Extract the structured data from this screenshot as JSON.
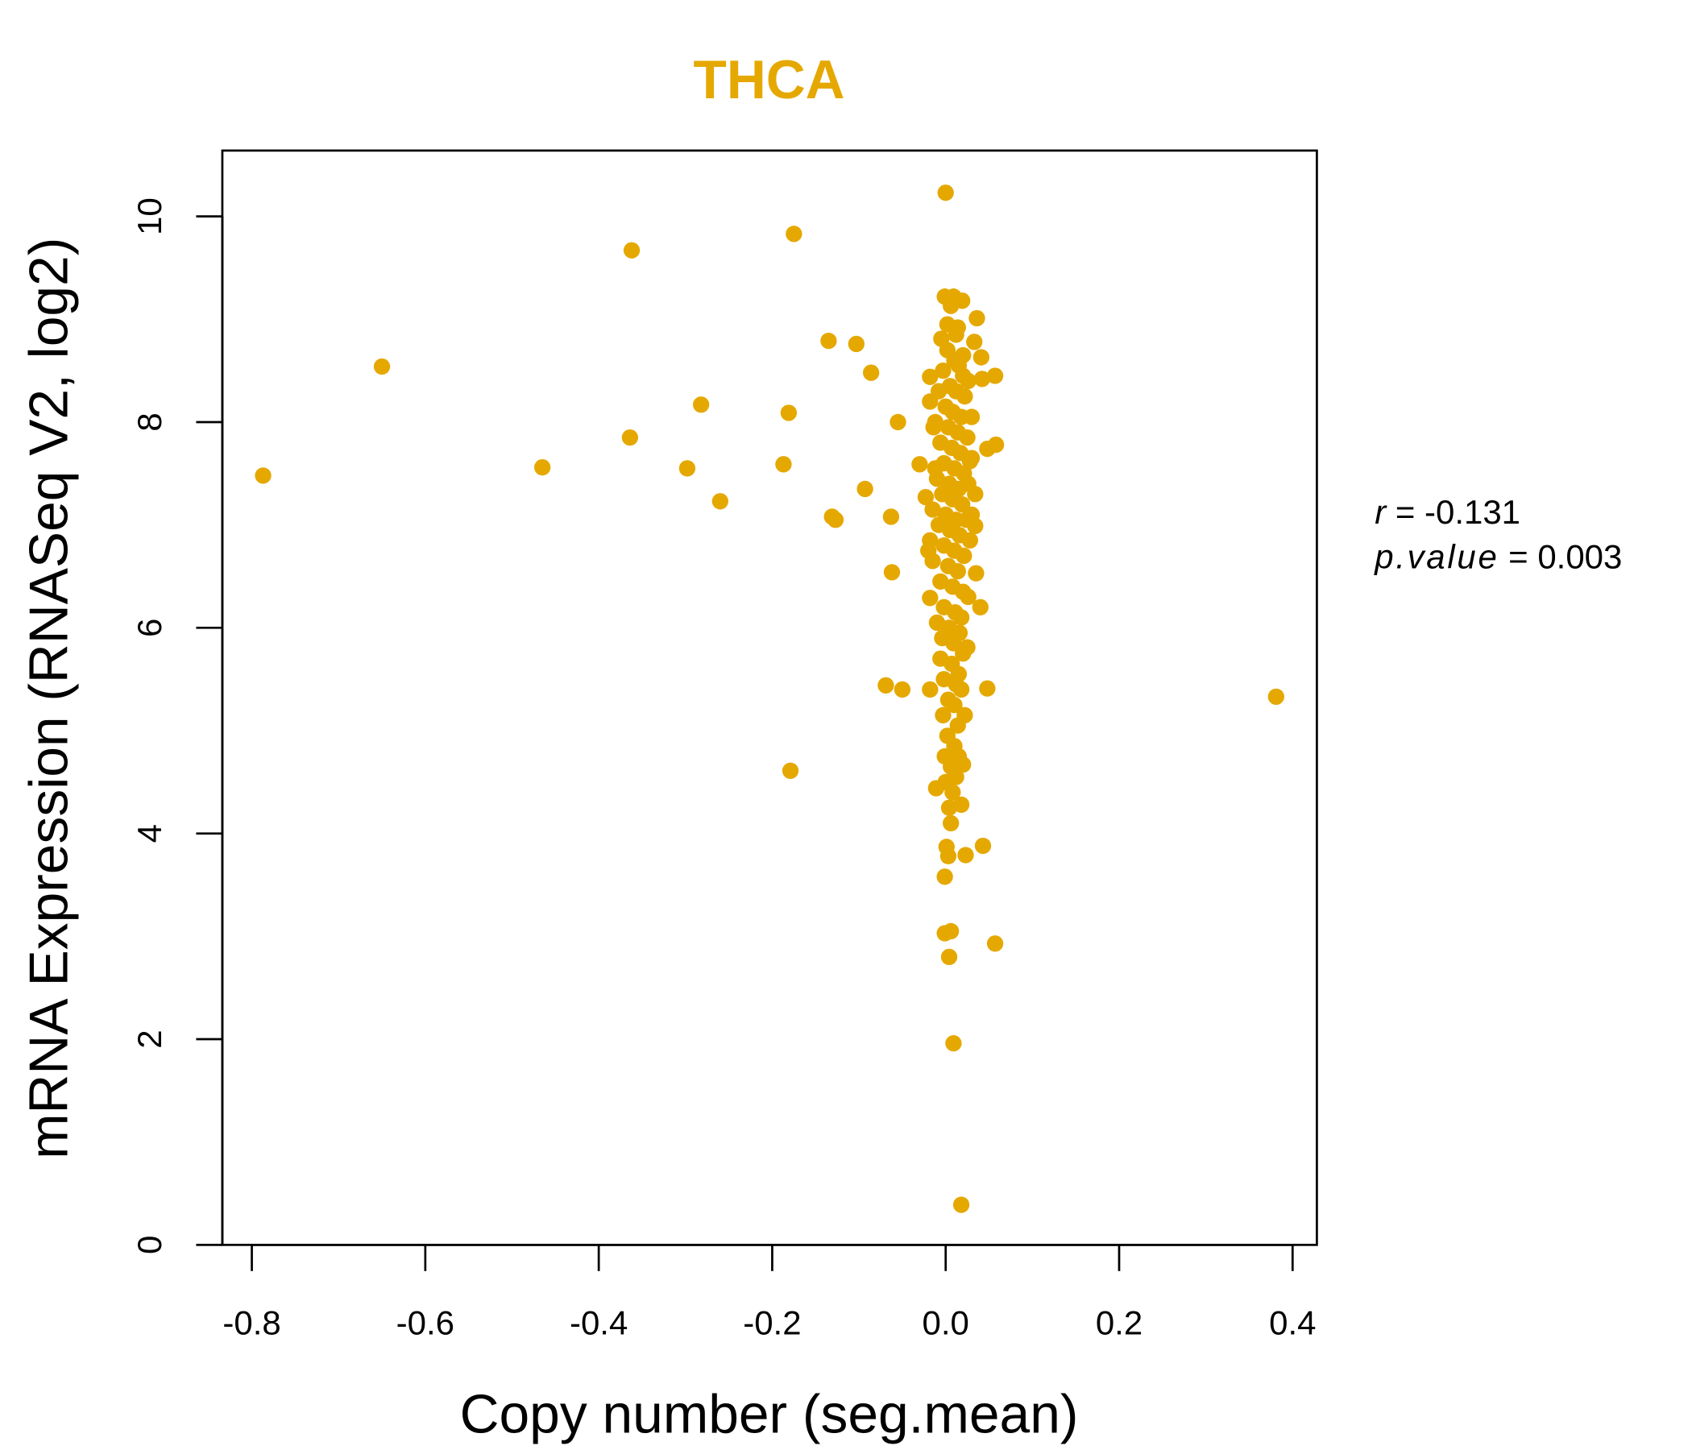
{
  "chart_data": {
    "type": "scatter",
    "title": "THCA",
    "xlabel": "Copy number (seg.mean)",
    "ylabel": "mRNA Expression (RNASeq V2, log2)",
    "xlim": [
      -0.834,
      0.428
    ],
    "ylim": [
      0,
      10.64
    ],
    "x_ticks": [
      "-0.8",
      "-0.6",
      "-0.4",
      "-0.2",
      "0.0",
      "0.2",
      "0.4"
    ],
    "x_tick_values": [
      -0.8,
      -0.6,
      -0.4,
      -0.2,
      0.0,
      0.2,
      0.4
    ],
    "y_ticks": [
      "0",
      "2",
      "4",
      "6",
      "8",
      "10"
    ],
    "y_tick_values": [
      0,
      2,
      4,
      6,
      8,
      10
    ],
    "grid": false,
    "point_color": "#E5A800",
    "title_color": "#E5A800",
    "stats": {
      "r_label": "r",
      "r_value": "= -0.131",
      "p_label": "p.value",
      "p_value": "= 0.003"
    },
    "points": [
      [
        -0.787,
        7.48
      ],
      [
        -0.65,
        8.54
      ],
      [
        -0.465,
        7.56
      ],
      [
        -0.362,
        9.67
      ],
      [
        -0.364,
        7.85
      ],
      [
        -0.298,
        7.55
      ],
      [
        -0.282,
        8.17
      ],
      [
        -0.26,
        7.23
      ],
      [
        -0.175,
        9.83
      ],
      [
        -0.181,
        8.09
      ],
      [
        -0.187,
        7.59
      ],
      [
        -0.179,
        4.61
      ],
      [
        -0.135,
        8.79
      ],
      [
        -0.103,
        8.76
      ],
      [
        -0.086,
        8.48
      ],
      [
        -0.131,
        7.08
      ],
      [
        -0.127,
        7.05
      ],
      [
        -0.093,
        7.35
      ],
      [
        -0.055,
        8.0
      ],
      [
        -0.063,
        7.08
      ],
      [
        -0.062,
        6.54
      ],
      [
        -0.069,
        5.44
      ],
      [
        -0.05,
        5.4
      ],
      [
        -0.03,
        7.59
      ],
      [
        0.381,
        5.33
      ],
      [
        0.0,
        10.23
      ],
      [
        -0.001,
        9.22
      ],
      [
        0.009,
        9.22
      ],
      [
        0.019,
        9.18
      ],
      [
        0.006,
        9.13
      ],
      [
        0.036,
        9.01
      ],
      [
        0.014,
        8.92
      ],
      [
        -0.005,
        8.81
      ],
      [
        0.033,
        8.78
      ],
      [
        0.041,
        8.63
      ],
      [
        0.057,
        8.45
      ],
      [
        0.042,
        8.42
      ],
      [
        -0.018,
        8.44
      ],
      [
        0.058,
        7.78
      ],
      [
        0.048,
        7.74
      ],
      [
        0.028,
        7.62
      ],
      [
        0.034,
        6.99
      ],
      [
        0.035,
        6.53
      ],
      [
        0.04,
        6.2
      ],
      [
        0.048,
        5.41
      ],
      [
        -0.018,
        5.4
      ],
      [
        0.025,
        5.81
      ],
      [
        0.022,
        5.15
      ],
      [
        0.02,
        4.67
      ],
      [
        0.018,
        4.28
      ],
      [
        0.043,
        3.88
      ],
      [
        0.023,
        3.79
      ],
      [
        0.001,
        3.87
      ],
      [
        0.003,
        3.78
      ],
      [
        -0.001,
        3.58
      ],
      [
        -0.001,
        3.03
      ],
      [
        0.006,
        3.05
      ],
      [
        0.057,
        2.93
      ],
      [
        0.004,
        2.8
      ],
      [
        0.009,
        1.96
      ],
      [
        0.018,
        0.39
      ],
      [
        -0.011,
        4.44
      ],
      [
        -0.018,
        6.29
      ],
      [
        -0.023,
        7.27
      ],
      [
        -0.018,
        8.2
      ],
      [
        0.002,
        8.7
      ],
      [
        0.01,
        8.6
      ],
      [
        0.015,
        8.55
      ],
      [
        0.02,
        8.45
      ],
      [
        -0.003,
        8.5
      ],
      [
        0.005,
        8.35
      ],
      [
        0.012,
        8.3
      ],
      [
        0.022,
        8.25
      ],
      [
        0.0,
        8.15
      ],
      [
        0.008,
        8.1
      ],
      [
        0.018,
        8.05
      ],
      [
        0.03,
        8.05
      ],
      [
        -0.012,
        8.0
      ],
      [
        0.003,
        7.95
      ],
      [
        0.014,
        7.9
      ],
      [
        0.025,
        7.85
      ],
      [
        -0.006,
        7.8
      ],
      [
        0.007,
        7.75
      ],
      [
        0.017,
        7.7
      ],
      [
        0.03,
        7.65
      ],
      [
        -0.002,
        7.6
      ],
      [
        0.01,
        7.55
      ],
      [
        0.021,
        7.5
      ],
      [
        -0.01,
        7.45
      ],
      [
        0.004,
        7.4
      ],
      [
        0.015,
        7.35
      ],
      [
        0.026,
        7.4
      ],
      [
        -0.004,
        7.3
      ],
      [
        0.008,
        7.25
      ],
      [
        0.019,
        7.2
      ],
      [
        -0.015,
        7.15
      ],
      [
        0.0,
        7.1
      ],
      [
        0.012,
        7.05
      ],
      [
        0.024,
        7.05
      ],
      [
        0.03,
        7.1
      ],
      [
        -0.008,
        7.0
      ],
      [
        0.005,
        6.95
      ],
      [
        0.016,
        6.9
      ],
      [
        -0.018,
        6.85
      ],
      [
        -0.002,
        6.8
      ],
      [
        0.01,
        6.75
      ],
      [
        0.021,
        6.7
      ],
      [
        -0.02,
        6.75
      ],
      [
        -0.015,
        6.65
      ],
      [
        0.003,
        6.6
      ],
      [
        0.014,
        6.55
      ],
      [
        -0.006,
        6.45
      ],
      [
        0.008,
        6.4
      ],
      [
        0.02,
        6.35
      ],
      [
        0.026,
        6.3
      ],
      [
        -0.002,
        6.2
      ],
      [
        0.011,
        6.15
      ],
      [
        0.018,
        6.1
      ],
      [
        0.004,
        6.0
      ],
      [
        0.016,
        5.95
      ],
      [
        -0.004,
        5.9
      ],
      [
        0.009,
        5.85
      ],
      [
        0.02,
        5.75
      ],
      [
        -0.006,
        5.7
      ],
      [
        0.007,
        5.65
      ],
      [
        0.015,
        5.55
      ],
      [
        -0.002,
        5.5
      ],
      [
        0.012,
        5.45
      ],
      [
        0.018,
        5.4
      ],
      [
        0.003,
        5.3
      ],
      [
        0.01,
        5.25
      ],
      [
        -0.003,
        5.15
      ],
      [
        0.014,
        5.05
      ],
      [
        0.002,
        4.95
      ],
      [
        0.01,
        4.85
      ],
      [
        -0.001,
        4.75
      ],
      [
        0.015,
        4.75
      ],
      [
        0.006,
        4.65
      ],
      [
        0.012,
        4.55
      ],
      [
        0.0,
        4.5
      ],
      [
        0.008,
        4.4
      ],
      [
        0.004,
        4.25
      ],
      [
        0.006,
        4.1
      ],
      [
        0.012,
        8.85
      ],
      [
        0.002,
        8.95
      ],
      [
        0.02,
        8.65
      ],
      [
        0.026,
        8.4
      ],
      [
        -0.008,
        8.3
      ],
      [
        -0.014,
        7.95
      ],
      [
        0.034,
        7.3
      ],
      [
        -0.012,
        7.55
      ],
      [
        0.028,
        6.85
      ],
      [
        -0.01,
        6.05
      ]
    ]
  }
}
